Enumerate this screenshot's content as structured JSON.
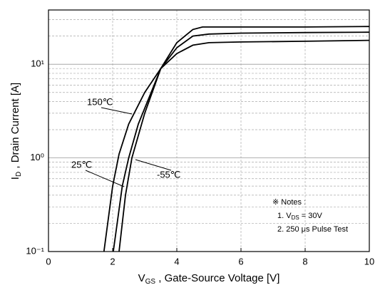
{
  "chart_data": {
    "type": "line",
    "ylog": true,
    "xlim": [
      0,
      10
    ],
    "ylim": [
      0.1,
      38
    ],
    "xticks": [
      0,
      2,
      4,
      6,
      8,
      10
    ],
    "yticks": [
      {
        "value": 0.1,
        "label": "10⁻¹"
      },
      {
        "value": 1,
        "label": "10⁰"
      },
      {
        "value": 10,
        "label": "10¹"
      }
    ],
    "y_minor_grid": [
      0.2,
      0.3,
      0.4,
      0.5,
      0.6,
      0.7,
      0.8,
      0.9,
      2,
      3,
      4,
      5,
      6,
      7,
      8,
      9,
      20,
      30
    ],
    "grid": true,
    "xlabel": {
      "main": "V",
      "sub": "GS",
      "rest": " , Gate-Source Voltage  [V]"
    },
    "ylabel": {
      "main": "I",
      "sub": "D",
      "rest": " , Drain Current  [A]"
    },
    "series": [
      {
        "name": "150℃",
        "color": "#000000",
        "x": [
          1.73,
          2.0,
          2.2,
          2.5,
          3.0,
          3.5,
          4.0,
          4.5,
          5,
          6,
          8,
          10
        ],
        "values": [
          0.1,
          0.5,
          1.1,
          2.3,
          5,
          9,
          13,
          16,
          17,
          17.3,
          17.6,
          18
        ]
      },
      {
        "name": "25℃",
        "color": "#000000",
        "x": [
          2.02,
          2.3,
          2.5,
          2.8,
          3.2,
          3.5,
          4.0,
          4.5,
          5,
          6,
          8,
          10
        ],
        "values": [
          0.1,
          0.5,
          1.0,
          2.3,
          5,
          9,
          15,
          20,
          21,
          21.5,
          21.8,
          22
        ]
      },
      {
        "name": "-55℃",
        "color": "#000000",
        "x": [
          2.2,
          2.4,
          2.6,
          3.0,
          3.5,
          4.0,
          4.5,
          4.8,
          6,
          8,
          10
        ],
        "values": [
          0.1,
          0.4,
          1.0,
          3,
          9,
          17,
          23.5,
          25,
          25,
          25,
          25.3
        ]
      }
    ],
    "notes": {
      "title": "※ Notes :",
      "line1": {
        "main": "1. V",
        "sub": "DS",
        "rest": " = 30V"
      },
      "line2": "2. 250 μs Pulse Test"
    }
  }
}
